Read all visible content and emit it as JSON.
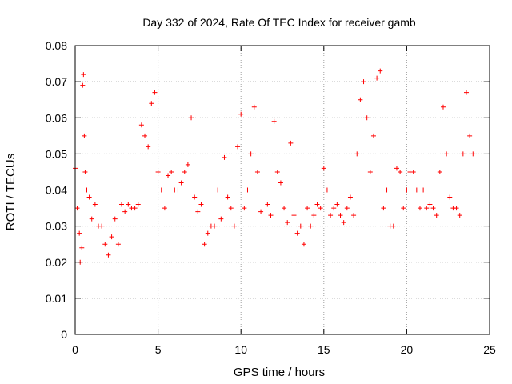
{
  "chart_data": {
    "type": "scatter",
    "title": "Day 332 of 2024, Rate Of TEC Index for receiver gamb",
    "xlabel": "GPS time / hours",
    "ylabel": "ROTI / TECUs",
    "xlim": [
      0,
      25
    ],
    "ylim": [
      0,
      0.08
    ],
    "x_ticks": [
      "0",
      "5",
      "10",
      "15",
      "20",
      "25"
    ],
    "y_ticks": [
      "0",
      "0.01",
      "0.02",
      "0.03",
      "0.04",
      "0.05",
      "0.06",
      "0.07",
      "0.08"
    ],
    "grid": true,
    "marker": "+",
    "color": "#ff0000",
    "series": [
      {
        "name": "ROTI",
        "x": [
          0.0,
          0.12,
          0.25,
          0.3,
          0.4,
          0.45,
          0.5,
          0.55,
          0.6,
          0.7,
          0.85,
          1.0,
          1.2,
          1.4,
          1.6,
          1.8,
          2.0,
          2.2,
          2.4,
          2.6,
          2.8,
          3.0,
          3.2,
          3.4,
          3.6,
          3.8,
          4.0,
          4.2,
          4.4,
          4.6,
          4.8,
          5.0,
          5.2,
          5.4,
          5.6,
          5.8,
          6.0,
          6.2,
          6.4,
          6.6,
          6.8,
          7.0,
          7.2,
          7.4,
          7.6,
          7.8,
          8.0,
          8.2,
          8.4,
          8.6,
          8.8,
          9.0,
          9.2,
          9.4,
          9.6,
          9.8,
          10.0,
          10.2,
          10.4,
          10.6,
          10.8,
          11.0,
          11.2,
          11.6,
          11.8,
          12.0,
          12.2,
          12.4,
          12.6,
          12.8,
          13.0,
          13.2,
          13.4,
          13.6,
          13.8,
          14.0,
          14.2,
          14.4,
          14.6,
          14.8,
          15.0,
          15.2,
          15.4,
          15.6,
          15.8,
          16.0,
          16.2,
          16.4,
          16.6,
          16.8,
          17.0,
          17.2,
          17.4,
          17.6,
          17.8,
          18.0,
          18.2,
          18.4,
          18.6,
          18.8,
          19.0,
          19.2,
          19.4,
          19.6,
          19.8,
          20.0,
          20.2,
          20.4,
          20.6,
          20.8,
          21.0,
          21.2,
          21.4,
          21.6,
          21.8,
          22.0,
          22.2,
          22.4,
          22.6,
          22.8,
          23.0,
          23.2,
          23.4,
          23.6,
          23.8,
          24.0
        ],
        "y": [
          0.046,
          0.035,
          0.028,
          0.02,
          0.024,
          0.069,
          0.072,
          0.055,
          0.045,
          0.04,
          0.038,
          0.032,
          0.036,
          0.03,
          0.03,
          0.025,
          0.022,
          0.027,
          0.032,
          0.025,
          0.036,
          0.034,
          0.036,
          0.035,
          0.035,
          0.036,
          0.058,
          0.055,
          0.052,
          0.064,
          0.067,
          0.045,
          0.04,
          0.035,
          0.044,
          0.045,
          0.04,
          0.04,
          0.042,
          0.045,
          0.047,
          0.06,
          0.038,
          0.034,
          0.036,
          0.025,
          0.028,
          0.03,
          0.03,
          0.04,
          0.032,
          0.049,
          0.038,
          0.035,
          0.03,
          0.052,
          0.061,
          0.035,
          0.04,
          0.05,
          0.063,
          0.045,
          0.034,
          0.036,
          0.033,
          0.059,
          0.045,
          0.042,
          0.035,
          0.031,
          0.053,
          0.033,
          0.028,
          0.03,
          0.025,
          0.035,
          0.03,
          0.033,
          0.036,
          0.035,
          0.046,
          0.04,
          0.033,
          0.035,
          0.036,
          0.033,
          0.031,
          0.035,
          0.038,
          0.033,
          0.05,
          0.065,
          0.07,
          0.06,
          0.045,
          0.055,
          0.071,
          0.073,
          0.035,
          0.04,
          0.03,
          0.03,
          0.046,
          0.045,
          0.035,
          0.04,
          0.045,
          0.045,
          0.04,
          0.035,
          0.04,
          0.035,
          0.036,
          0.035,
          0.033,
          0.045,
          0.063,
          0.05,
          0.038,
          0.035,
          0.035,
          0.033,
          0.05,
          0.067,
          0.055,
          0.05
        ]
      }
    ]
  }
}
